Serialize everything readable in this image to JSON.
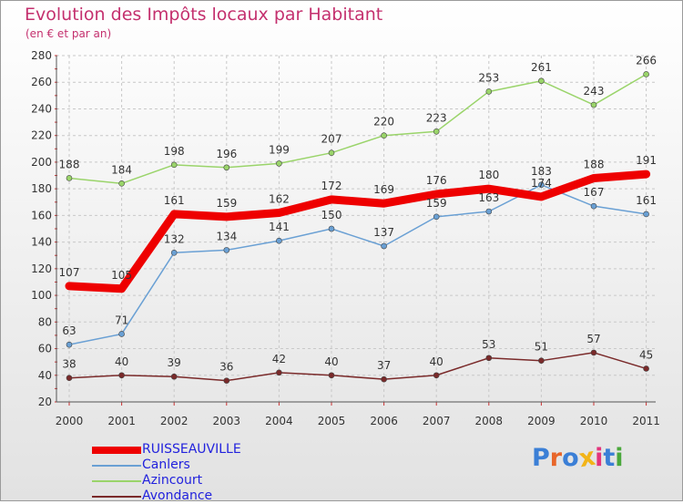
{
  "title": "Evolution des Impôts locaux par Habitant",
  "subtitle": "(en € et par an)",
  "logo": {
    "text": "Proxiti",
    "colors": [
      "#3b7fd6",
      "#e8662a",
      "#3b7fd6",
      "#f2b418",
      "#e3347c",
      "#3b7fd6",
      "#4aa83c"
    ]
  },
  "chart_data": {
    "type": "line",
    "x": [
      "2000",
      "2001",
      "2002",
      "2003",
      "2004",
      "2005",
      "2006",
      "2007",
      "2008",
      "2009",
      "2010",
      "2011"
    ],
    "ylim": [
      20,
      280
    ],
    "yticks": [
      20,
      40,
      60,
      80,
      100,
      120,
      140,
      160,
      180,
      200,
      220,
      240,
      260,
      280
    ],
    "grid": true,
    "legend": "bottom-left",
    "series": [
      {
        "name": "RUISSEAUVILLE",
        "color": "#ee0000",
        "values": [
          107,
          105,
          161,
          159,
          162,
          172,
          169,
          176,
          180,
          174,
          188,
          191
        ],
        "labels": [
          "107",
          "105",
          "161",
          "159",
          "162",
          "172",
          "169",
          "176",
          "180",
          "174",
          "188",
          "191"
        ]
      },
      {
        "name": "Canlers",
        "color": "#6aa0d4",
        "values": [
          63,
          71,
          132,
          134,
          141,
          150,
          137,
          159,
          163,
          183,
          167,
          161
        ],
        "labels": [
          "63",
          "71",
          "132",
          "134",
          "141",
          "150",
          "137",
          "159",
          "163",
          "183",
          "167",
          "161"
        ]
      },
      {
        "name": "Azincourt",
        "color": "#9ad46a",
        "values": [
          188,
          184,
          198,
          196,
          199,
          207,
          220,
          223,
          253,
          261,
          243,
          266
        ],
        "labels": [
          "188",
          "184",
          "198",
          "196",
          "199",
          "207",
          "220",
          "223",
          "253",
          "261",
          "243",
          "266"
        ]
      },
      {
        "name": "Avondance",
        "color": "#7a2a2a",
        "values": [
          38,
          40,
          39,
          36,
          42,
          40,
          37,
          40,
          53,
          51,
          57,
          45
        ],
        "labels": [
          "38",
          "40",
          "39",
          "36",
          "42",
          "40",
          "37",
          "40",
          "53",
          "51",
          "57",
          "45"
        ]
      }
    ]
  }
}
